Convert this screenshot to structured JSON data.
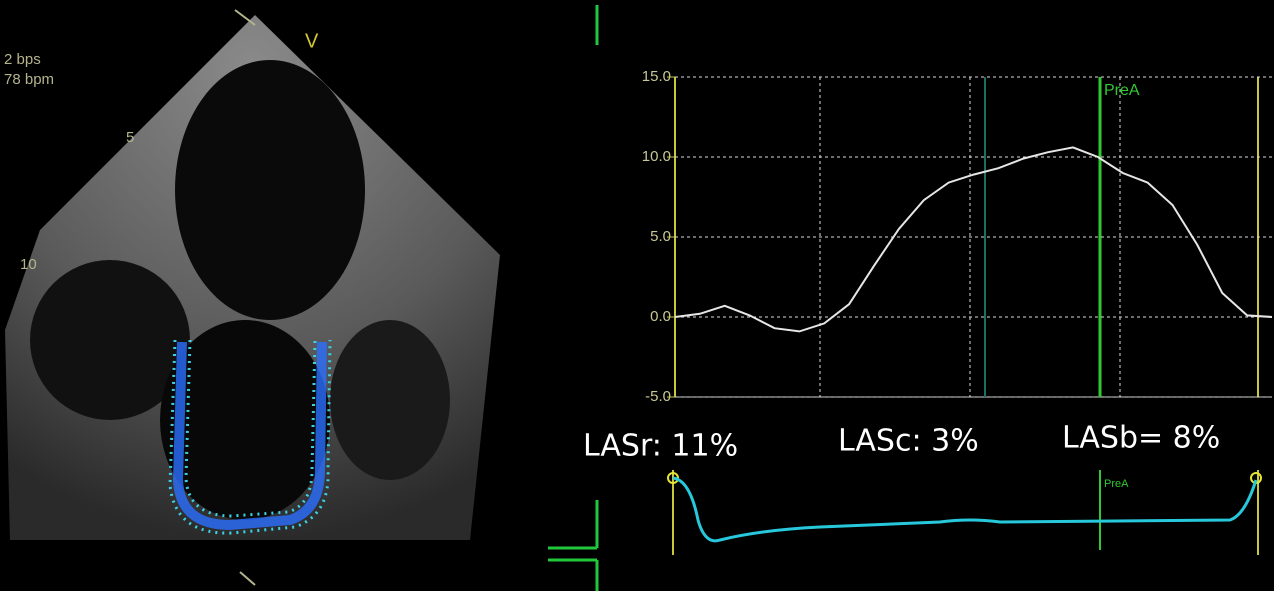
{
  "overlay": {
    "rate_1": "2 bps",
    "rate_2": "78 bpm",
    "probe_mark": "V",
    "depth_1": "5",
    "depth_2": "10"
  },
  "chart_data": {
    "type": "line",
    "values": [
      0,
      0.2,
      0.7,
      0.1,
      -0.7,
      -0.9,
      -0.4,
      0.8,
      3.2,
      5.5,
      7.3,
      8.4,
      8.9,
      9.3,
      9.9,
      10.3,
      10.6,
      10.0,
      9.0,
      8.4,
      7.0,
      4.5,
      1.5,
      0.1,
      0.0
    ],
    "color": "#e6e6e6",
    "ylim": [
      -5,
      15
    ],
    "yticks": [
      {
        "value": -5,
        "label": "-5.0"
      },
      {
        "value": 0,
        "label": "0.0"
      },
      {
        "value": 5,
        "label": "5.0"
      },
      {
        "value": 10,
        "label": "10.0"
      },
      {
        "value": 15,
        "label": "15.0"
      }
    ],
    "grid": true,
    "event_label": "PreA",
    "annotations": [
      "LASr: 11%",
      "LASc: 3%",
      "LASb= 8%"
    ],
    "mini_event_label": "PreA"
  }
}
